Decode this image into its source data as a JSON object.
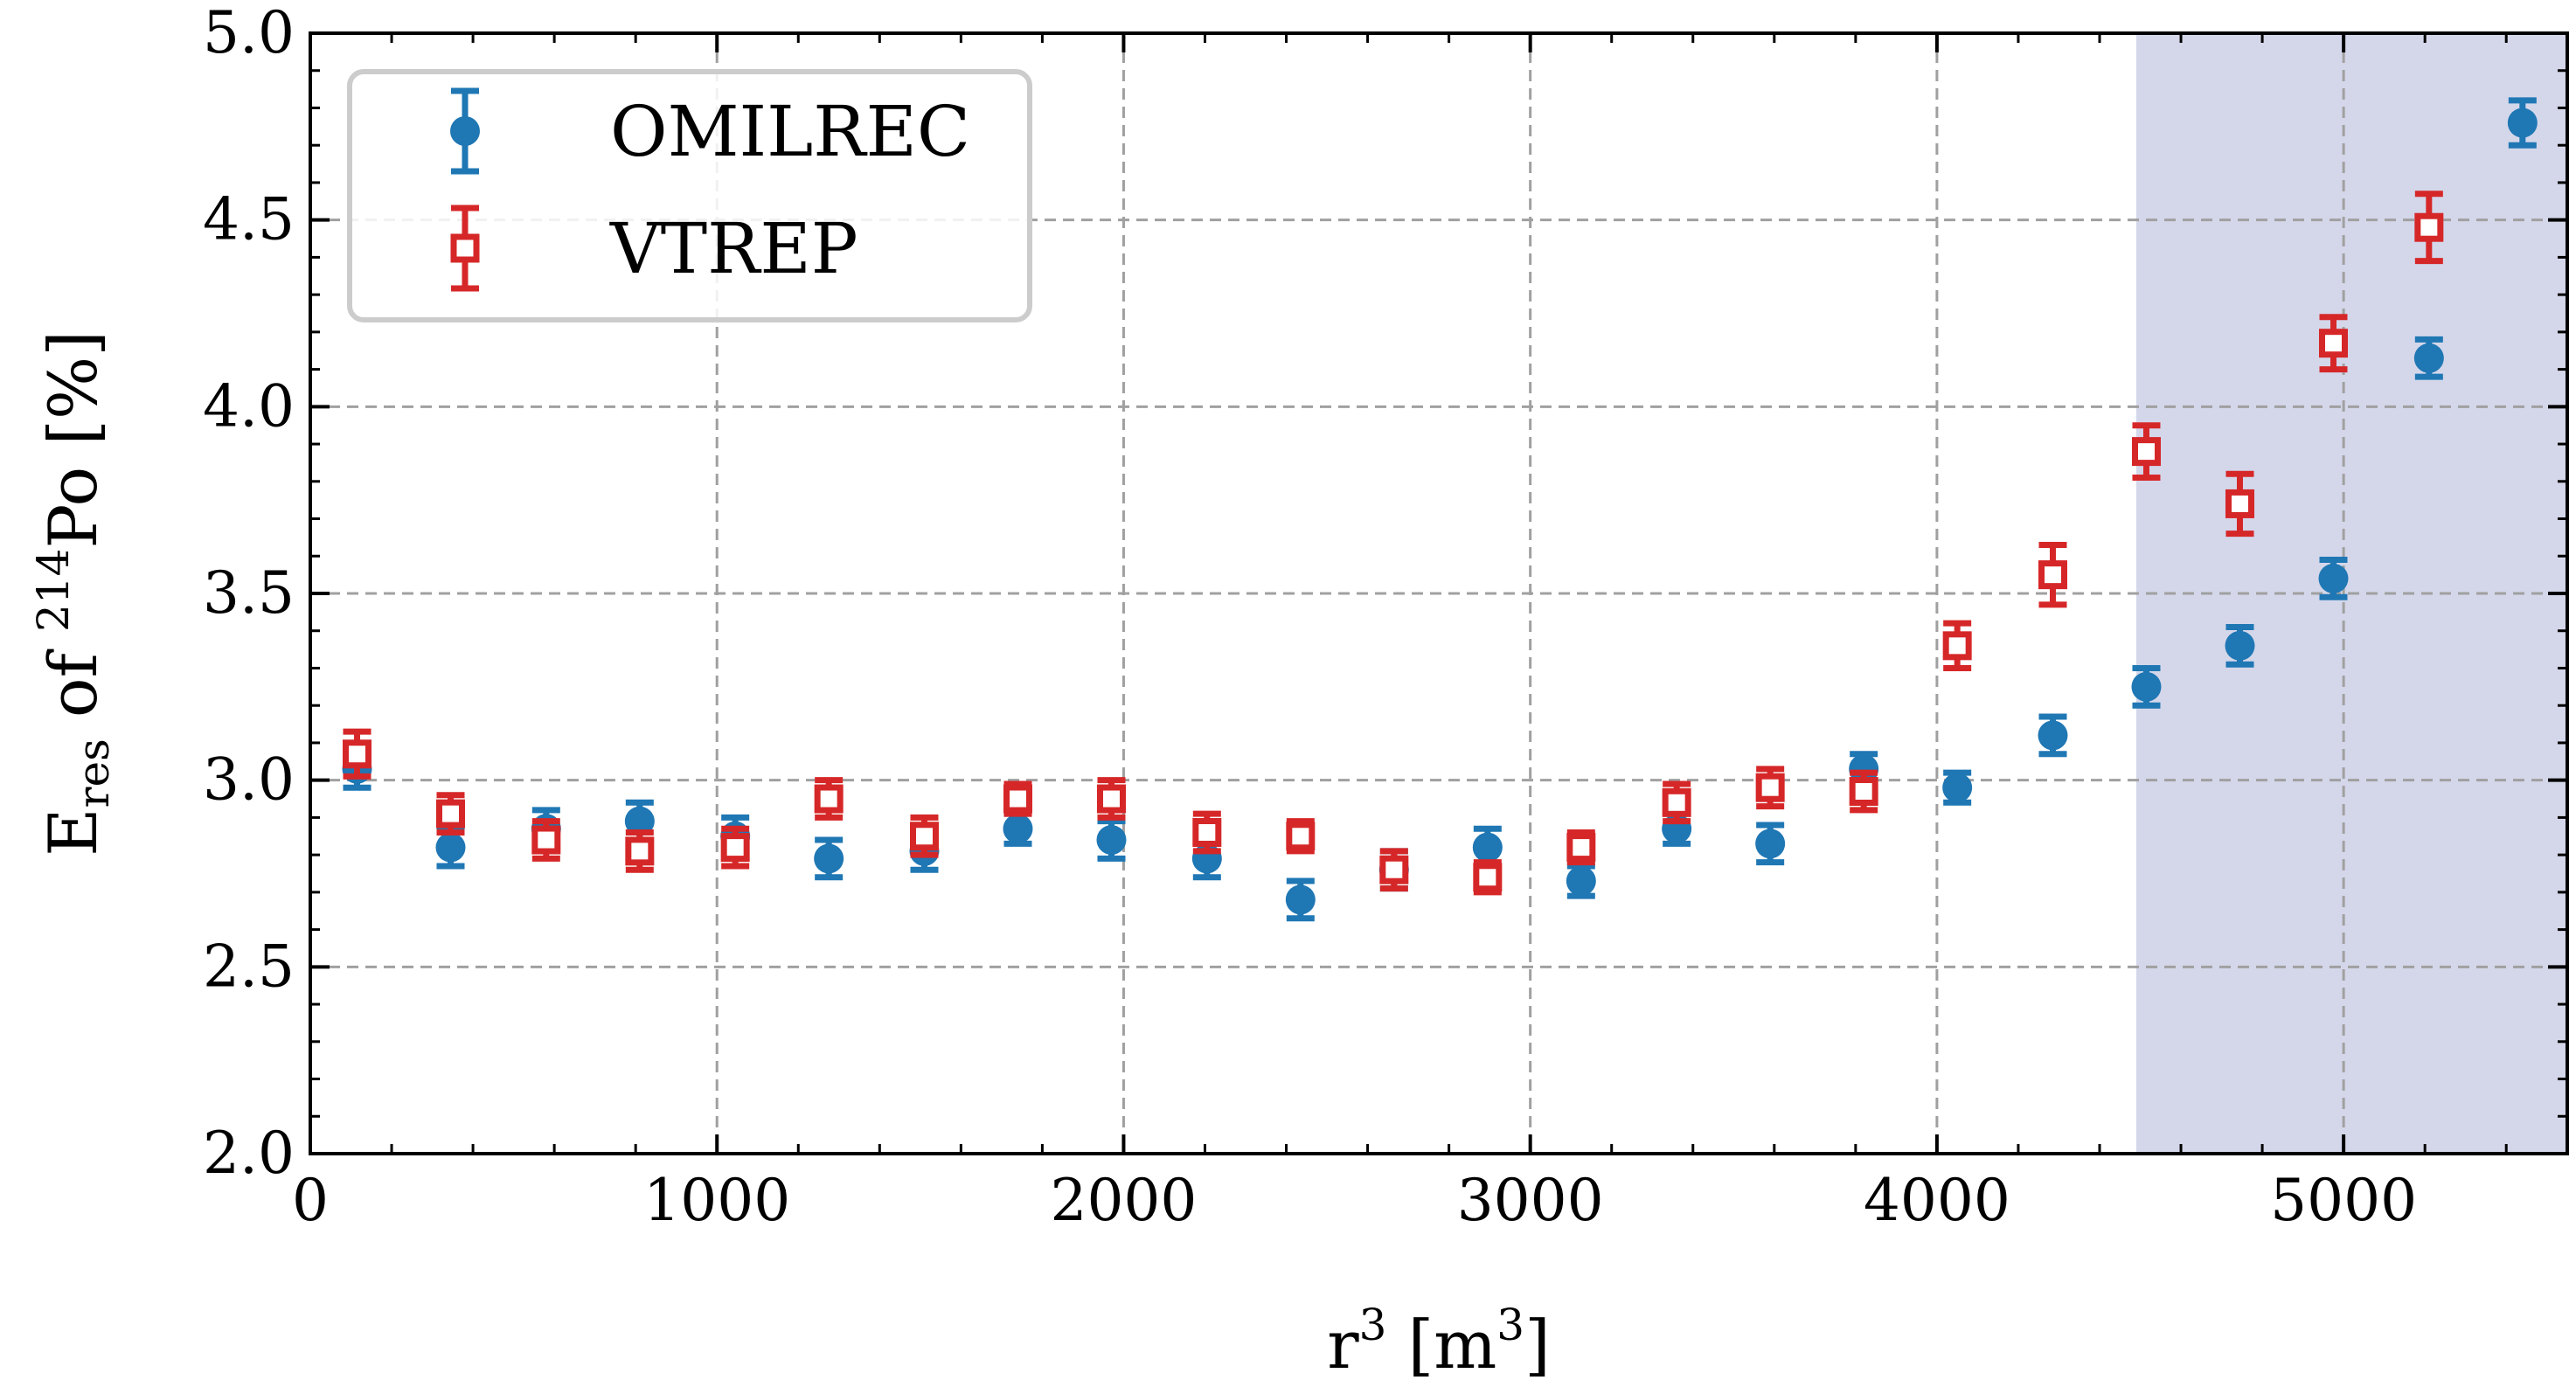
{
  "chart_data": {
    "type": "scatter",
    "title": "",
    "xlabel": {
      "prefix": "r",
      "sup": "3",
      "unit_open": " [m",
      "unit_sup": "3",
      "unit_close": "]"
    },
    "ylabel": {
      "main": "E",
      "sub": "res",
      "middle": " of ",
      "sup": "214",
      "element": "Po",
      "unit": " [%]"
    },
    "xlim": [
      0,
      5550
    ],
    "ylim": [
      2.0,
      5.0
    ],
    "xticks": [
      0,
      1000,
      2000,
      3000,
      4000,
      5000
    ],
    "xtick_labels": [
      "0",
      "1000",
      "2000",
      "3000",
      "4000",
      "5000"
    ],
    "yticks": [
      2.0,
      2.5,
      3.0,
      3.5,
      4.0,
      4.5,
      5.0
    ],
    "ytick_labels": [
      "2.0",
      "2.5",
      "3.0",
      "3.5",
      "4.0",
      "4.5",
      "5.0"
    ],
    "grid": true,
    "legend_position": "top-left",
    "shaded_region": {
      "x0": 4490,
      "x1": 5550,
      "color": "#d4d7ea"
    },
    "series": [
      {
        "name": "OMILREC",
        "marker": "circle",
        "color": "#1f77b4",
        "x": [
          115,
          345,
          580,
          810,
          1045,
          1275,
          1510,
          1740,
          1970,
          2205,
          2435,
          2665,
          2895,
          3125,
          3360,
          3590,
          3820,
          4050,
          4285,
          4515,
          4745,
          4975,
          5210,
          5440
        ],
        "y": [
          3.03,
          2.82,
          2.87,
          2.89,
          2.85,
          2.79,
          2.81,
          2.87,
          2.84,
          2.79,
          2.68,
          2.76,
          2.82,
          2.73,
          2.87,
          2.83,
          3.03,
          2.98,
          3.12,
          3.25,
          3.36,
          3.54,
          4.13,
          4.76
        ],
        "err": [
          0.05,
          0.05,
          0.05,
          0.05,
          0.05,
          0.05,
          0.05,
          0.04,
          0.05,
          0.05,
          0.05,
          0.05,
          0.05,
          0.04,
          0.04,
          0.05,
          0.04,
          0.04,
          0.05,
          0.05,
          0.05,
          0.05,
          0.05,
          0.06
        ]
      },
      {
        "name": "VTREP",
        "marker": "square",
        "color": "#d62728",
        "x": [
          115,
          345,
          580,
          810,
          1045,
          1275,
          1510,
          1740,
          1970,
          2205,
          2435,
          2665,
          2895,
          3125,
          3360,
          3590,
          3820,
          4050,
          4285,
          4515,
          4745,
          4975,
          5210
        ],
        "y": [
          3.07,
          2.91,
          2.84,
          2.81,
          2.82,
          2.95,
          2.85,
          2.95,
          2.95,
          2.86,
          2.85,
          2.76,
          2.74,
          2.82,
          2.94,
          2.98,
          2.97,
          3.36,
          3.55,
          3.88,
          3.74,
          4.17,
          4.48
        ],
        "err": [
          0.06,
          0.05,
          0.05,
          0.05,
          0.05,
          0.05,
          0.05,
          0.04,
          0.05,
          0.05,
          0.04,
          0.05,
          0.04,
          0.04,
          0.05,
          0.05,
          0.05,
          0.06,
          0.08,
          0.07,
          0.08,
          0.07,
          0.09
        ]
      }
    ]
  }
}
